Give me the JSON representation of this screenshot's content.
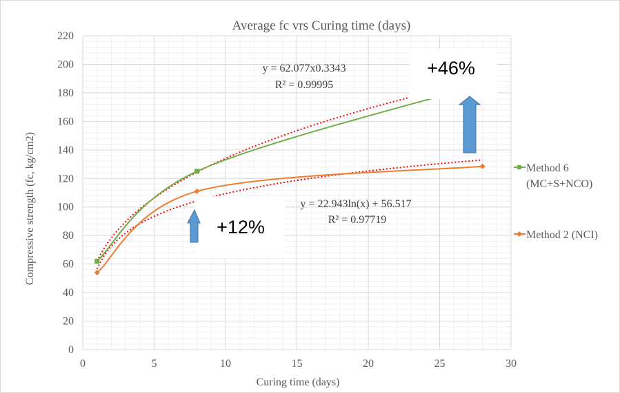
{
  "chart_data": {
    "type": "line",
    "title": "Average fc vrs Curing time (days)",
    "xlabel": "Curing time (days)",
    "ylabel": "Compressive strength (fc, kg/cm2)",
    "xlim": [
      0,
      30
    ],
    "ylim": [
      0,
      220
    ],
    "x_ticks": [
      0,
      5,
      10,
      15,
      20,
      25,
      30
    ],
    "y_ticks": [
      0,
      20,
      40,
      60,
      80,
      100,
      120,
      140,
      160,
      180,
      200,
      220
    ],
    "grid": true,
    "minor_grid": true,
    "legend_position": "right",
    "series": [
      {
        "name": "Method 6 (MC+S+NCO)",
        "legend_lines": [
          "Method 6",
          "(MC+S+NCO)"
        ],
        "color": "#70ad47",
        "marker": "square",
        "x": [
          1,
          8,
          28
        ],
        "y": [
          62,
          125,
          186
        ],
        "trendline": {
          "type": "power",
          "a": 62.077,
          "b": 0.3343,
          "color": "#ff0000",
          "equation": "y = 62.077x0.3343",
          "r2": "R² = 0.99995"
        }
      },
      {
        "name": "Method 2 (NCI)",
        "legend_lines": [
          "Method 2 (NCI)"
        ],
        "color": "#ed7d31",
        "marker": "diamond",
        "x": [
          1,
          8,
          28
        ],
        "y": [
          54,
          111,
          128.5
        ],
        "trendline": {
          "type": "log",
          "a": 22.943,
          "b": 56.517,
          "color": "#ff0000",
          "equation": "y = 22.943ln(x) + 56.517",
          "r2": "R² = 0.97719"
        }
      }
    ],
    "annotations": [
      {
        "text": "+46%",
        "arrow": "up",
        "arrow_color": "#5b9bd5"
      },
      {
        "text": "+12%",
        "arrow": "up",
        "arrow_color": "#5b9bd5"
      }
    ]
  }
}
